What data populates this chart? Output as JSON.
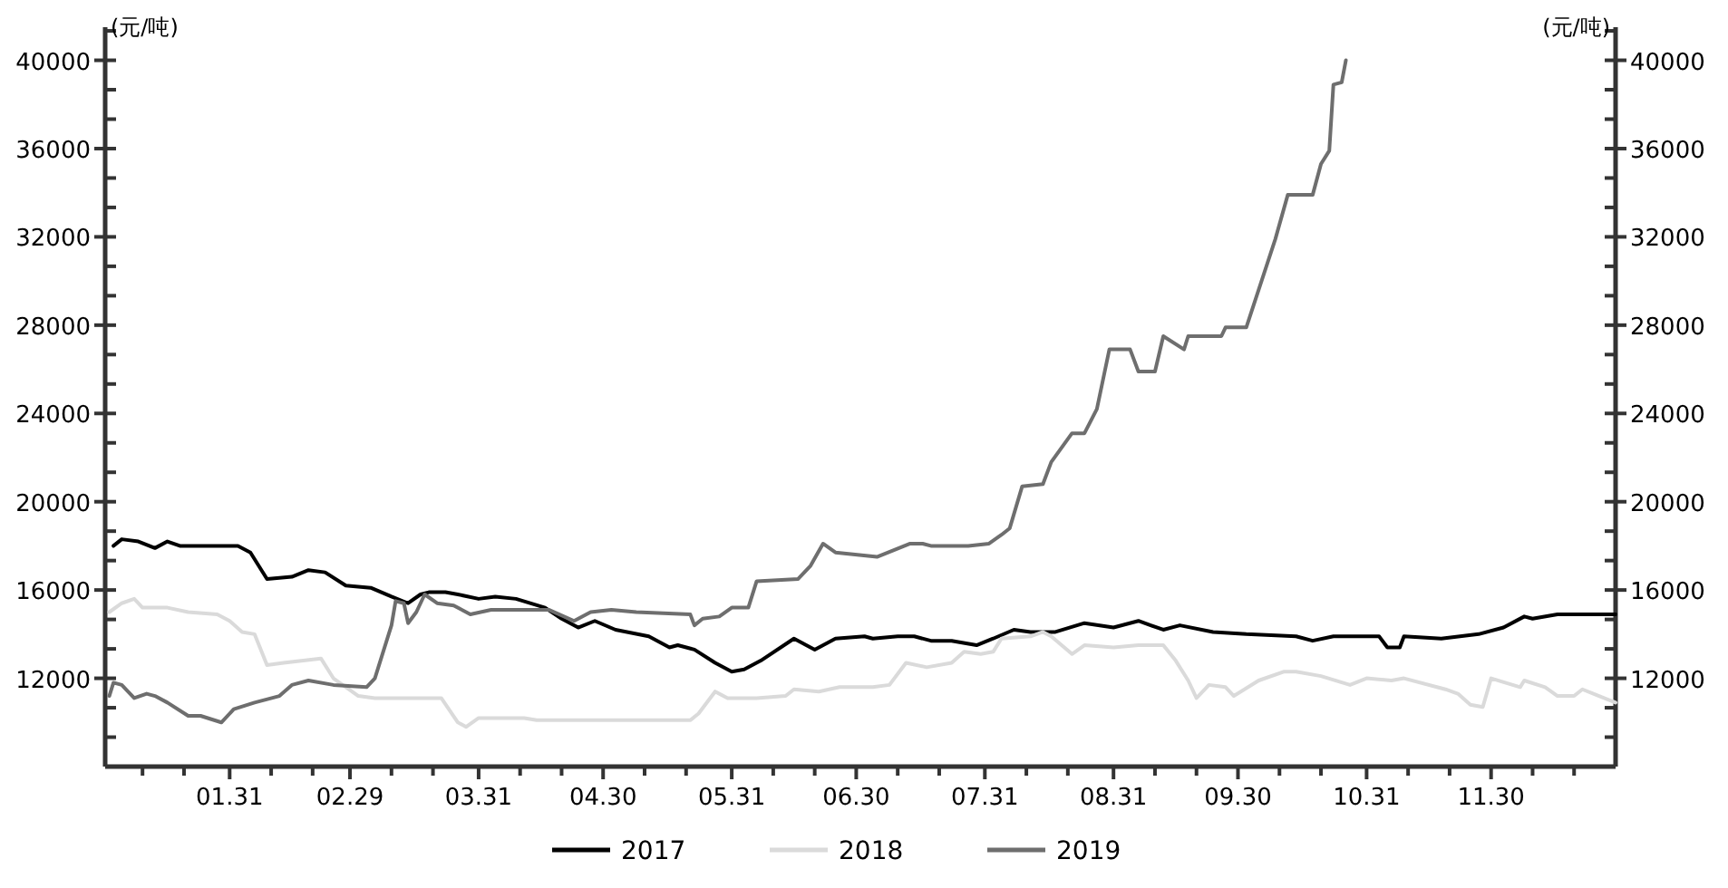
{
  "chart_data": {
    "type": "line",
    "ylabel": "(元/吨)",
    "y2label": "(元/吨)",
    "xlim": [
      "--01-01",
      "--12-30"
    ],
    "xticks": [
      {
        "value": "--01-10",
        "label": null
      },
      {
        "value": "--01-20",
        "label": null
      },
      {
        "value": "--01-31",
        "label": "01.31"
      },
      {
        "value": "--02-10",
        "label": null
      },
      {
        "value": "--02-20",
        "label": null
      },
      {
        "value": "--02-29",
        "label": "02.29"
      },
      {
        "value": "--03-10",
        "label": null
      },
      {
        "value": "--03-20",
        "label": null
      },
      {
        "value": "--03-31",
        "label": "03.31"
      },
      {
        "value": "--04-10",
        "label": null
      },
      {
        "value": "--04-20",
        "label": null
      },
      {
        "value": "--04-30",
        "label": "04.30"
      },
      {
        "value": "--05-10",
        "label": null
      },
      {
        "value": "--05-20",
        "label": null
      },
      {
        "value": "--05-31",
        "label": "05.31"
      },
      {
        "value": "--06-10",
        "label": null
      },
      {
        "value": "--06-20",
        "label": null
      },
      {
        "value": "--06-30",
        "label": "06.30"
      },
      {
        "value": "--07-10",
        "label": null
      },
      {
        "value": "--07-20",
        "label": null
      },
      {
        "value": "--07-31",
        "label": "07.31"
      },
      {
        "value": "--08-10",
        "label": null
      },
      {
        "value": "--08-20",
        "label": null
      },
      {
        "value": "--08-31",
        "label": "08.31"
      },
      {
        "value": "--09-10",
        "label": null
      },
      {
        "value": "--09-20",
        "label": null
      },
      {
        "value": "--09-30",
        "label": "09.30"
      },
      {
        "value": "--10-10",
        "label": null
      },
      {
        "value": "--10-20",
        "label": null
      },
      {
        "value": "--10-31",
        "label": "10.31"
      },
      {
        "value": "--11-10",
        "label": null
      },
      {
        "value": "--11-20",
        "label": null
      },
      {
        "value": "--11-30",
        "label": "11.30"
      },
      {
        "value": "--12-10",
        "label": null
      },
      {
        "value": "--12-20",
        "label": null
      }
    ],
    "ylim": [
      8000,
      41500
    ],
    "yticks": [
      12000,
      16000,
      20000,
      24000,
      28000,
      32000,
      36000,
      40000
    ],
    "y2lim": [
      8000,
      41500
    ],
    "y2ticks": [
      12000,
      16000,
      20000,
      24000,
      28000,
      32000,
      36000,
      40000
    ],
    "grid": false,
    "legend": "bottom",
    "marker": "none",
    "line_style": "solid",
    "series": [
      {
        "name": "2017",
        "color": "#000000",
        "x": [
          "--01-03",
          "--01-05",
          "--01-09",
          "--01-13",
          "--01-16",
          "--01-19",
          "--01-27",
          "--02-02",
          "--02-05",
          "--02-09",
          "--02-15",
          "--02-19",
          "--02-23",
          "--02-28",
          "--03-05",
          "--03-10",
          "--03-14",
          "--03-17",
          "--03-19",
          "--03-23",
          "--03-26",
          "--03-31",
          "--04-04",
          "--04-09",
          "--04-16",
          "--04-20",
          "--04-24",
          "--04-28",
          "--05-03",
          "--05-11",
          "--05-16",
          "--05-18",
          "--05-22",
          "--05-27",
          "--05-31",
          "--06-03",
          "--06-07",
          "--06-15",
          "--06-20",
          "--06-25",
          "--07-02",
          "--07-04",
          "--07-10",
          "--07-14",
          "--07-18",
          "--07-23",
          "--07-29",
          "--08-02",
          "--08-07",
          "--08-11",
          "--08-17",
          "--08-24",
          "--08-31",
          "--09-06",
          "--09-12",
          "--09-16",
          "--09-24",
          "--10-02",
          "--10-14",
          "--10-18",
          "--10-23",
          "--11-03",
          "--11-05",
          "--11-08",
          "--11-09",
          "--11-18",
          "--11-27",
          "--12-03",
          "--12-08",
          "--12-10",
          "--12-16",
          "--12-30"
        ],
        "values": [
          18000,
          18300,
          18200,
          17900,
          18200,
          18000,
          18000,
          18000,
          17700,
          16500,
          16600,
          16900,
          16800,
          16200,
          16100,
          15700,
          15400,
          15800,
          15900,
          15900,
          15800,
          15600,
          15700,
          15600,
          15200,
          14700,
          14300,
          14600,
          14200,
          13900,
          13400,
          13500,
          13300,
          12700,
          12300,
          12400,
          12800,
          13800,
          13300,
          13800,
          13900,
          13800,
          13900,
          13900,
          13700,
          13700,
          13500,
          13800,
          14200,
          14100,
          14100,
          14500,
          14300,
          14600,
          14200,
          14400,
          14100,
          14000,
          13900,
          13700,
          13900,
          13900,
          13400,
          13400,
          13900,
          13800,
          14000,
          14300,
          14800,
          14700,
          14900,
          14900
        ]
      },
      {
        "name": "2018",
        "color": "#dadada",
        "x": [
          "--01-02",
          "--01-05",
          "--01-08",
          "--01-10",
          "--01-16",
          "--01-21",
          "--01-28",
          "--01-31",
          "--02-03",
          "--02-06",
          "--02-09",
          "--02-13",
          "--02-22",
          "--02-25",
          "--03-02",
          "--03-06",
          "--03-22",
          "--03-26",
          "--03-28",
          "--03-31",
          "--04-11",
          "--04-14",
          "--05-21",
          "--05-23",
          "--05-27",
          "--05-30",
          "--06-06",
          "--06-13",
          "--06-15",
          "--06-21",
          "--06-26",
          "--07-04",
          "--07-08",
          "--07-12",
          "--07-17",
          "--07-23",
          "--07-26",
          "--07-30",
          "--08-02",
          "--08-04",
          "--08-11",
          "--08-14",
          "--08-16",
          "--08-21",
          "--08-24",
          "--08-31",
          "--09-06",
          "--09-12",
          "--09-15",
          "--09-18",
          "--09-20",
          "--09-23",
          "--09-27",
          "--09-29",
          "--10-05",
          "--10-11",
          "--10-14",
          "--10-20",
          "--10-27",
          "--10-31",
          "--11-06",
          "--11-09",
          "--11-19",
          "--11-22",
          "--11-25",
          "--11-28",
          "--11-30",
          "--12-07",
          "--12-08",
          "--12-13",
          "--12-16",
          "--12-20",
          "--12-22",
          "--12-26",
          "--12-30"
        ],
        "values": [
          15000,
          15400,
          15600,
          15200,
          15200,
          15000,
          14900,
          14600,
          14100,
          14000,
          12600,
          12700,
          12900,
          12000,
          11200,
          11100,
          11100,
          10000,
          9800,
          10200,
          10200,
          10100,
          10100,
          10400,
          11400,
          11100,
          11100,
          11200,
          11500,
          11400,
          11600,
          11600,
          11700,
          12700,
          12500,
          12700,
          13200,
          13100,
          13200,
          13800,
          13900,
          14100,
          13900,
          13100,
          13500,
          13400,
          13500,
          13500,
          12800,
          11900,
          11100,
          11700,
          11600,
          11200,
          11900,
          12300,
          12300,
          12100,
          11700,
          12000,
          11900,
          12000,
          11500,
          11300,
          10800,
          10700,
          12000,
          11600,
          11900,
          11600,
          11200,
          11200,
          11500,
          11200,
          10900
        ]
      },
      {
        "name": "2019",
        "color": "#6e6e6e",
        "x": [
          "--01-02",
          "--01-03",
          "--01-05",
          "--01-08",
          "--01-11",
          "--01-13",
          "--01-16",
          "--01-21",
          "--01-24",
          "--01-29",
          "--02-01",
          "--02-06",
          "--02-12",
          "--02-15",
          "--02-19",
          "--02-25",
          "--03-04",
          "--03-06",
          "--03-10",
          "--03-11",
          "--03-13",
          "--03-14",
          "--03-16",
          "--03-18",
          "--03-21",
          "--03-25",
          "--03-29",
          "--04-03",
          "--04-17",
          "--04-23",
          "--04-27",
          "--05-02",
          "--05-08",
          "--05-21",
          "--05-22",
          "--05-24",
          "--05-28",
          "--05-31",
          "--06-04",
          "--06-06",
          "--06-16",
          "--06-19",
          "--06-22",
          "--06-25",
          "--07-05",
          "--07-13",
          "--07-16",
          "--07-18",
          "--07-27",
          "--08-01",
          "--08-04",
          "--08-06",
          "--08-09",
          "--08-14",
          "--08-16",
          "--08-21",
          "--08-24",
          "--08-27",
          "--08-30",
          "--09-04",
          "--09-06",
          "--09-10",
          "--09-12",
          "--09-17",
          "--09-18",
          "--09-26",
          "--09-27",
          "--10-02",
          "--10-09",
          "--10-12",
          "--10-18",
          "--10-20",
          "--10-22",
          "--10-23",
          "--10-25",
          "--10-26"
        ],
        "values": [
          11200,
          11800,
          11700,
          11100,
          11300,
          11200,
          10900,
          10300,
          10300,
          10000,
          10600,
          10900,
          11200,
          11700,
          11900,
          11700,
          11600,
          12000,
          14400,
          15500,
          15400,
          14500,
          15000,
          15800,
          15400,
          15300,
          14900,
          15100,
          15100,
          14600,
          15000,
          15100,
          15000,
          14900,
          14400,
          14700,
          14800,
          15200,
          15200,
          16400,
          16500,
          17100,
          18100,
          17700,
          17500,
          18100,
          18100,
          18000,
          18000,
          18100,
          18500,
          18800,
          20700,
          20800,
          21800,
          23100,
          23100,
          24200,
          26900,
          26900,
          25900,
          25900,
          27500,
          26900,
          27500,
          27500,
          27900,
          27900,
          31900,
          33900,
          33900,
          35300,
          35900,
          38900,
          39000,
          40000
        ]
      }
    ]
  }
}
